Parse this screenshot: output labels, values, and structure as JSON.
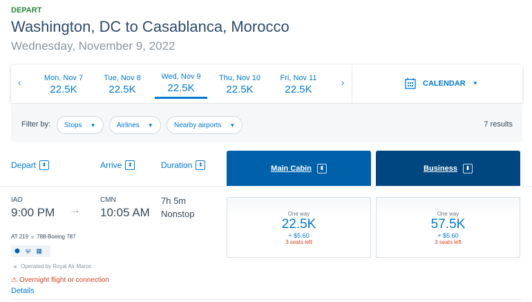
{
  "header": {
    "label": "DEPART",
    "title": "Washington, DC to Casablanca, Morocco",
    "date": "Wednesday, November 9, 2022"
  },
  "date_strip": {
    "days": [
      {
        "day": "Mon, Nov 7",
        "price": "22.5K",
        "selected": false
      },
      {
        "day": "Tue, Nov 8",
        "price": "22.5K",
        "selected": false
      },
      {
        "day": "Wed, Nov 9",
        "price": "22.5K",
        "selected": true
      },
      {
        "day": "Thu, Nov 10",
        "price": "22.5K",
        "selected": false
      },
      {
        "day": "Fri, Nov 11",
        "price": "22.5K",
        "selected": false
      }
    ],
    "prev": "‹",
    "next": "›",
    "calendar_label": "CALENDAR"
  },
  "filters": {
    "label": "Filter by:",
    "pills": [
      "Stops",
      "Airlines",
      "Nearby airports"
    ],
    "results": "7 results"
  },
  "columns": {
    "depart": "Depart",
    "arrive": "Arrive",
    "duration": "Duration",
    "main_cabin": "Main Cabin",
    "business": "Business"
  },
  "colors": {
    "main_cabin": "#0061ab",
    "business": "#00467f",
    "accent": "#0078d2",
    "warning": "#d14424",
    "depart_label": "#2e8540"
  },
  "flight": {
    "origin": "IAD",
    "depart_time": "9:00 PM",
    "dest": "CMN",
    "arrive_time": "10:05 AM",
    "duration": "7h 5m",
    "stops": "Nonstop",
    "flight_no": "AT 219",
    "aircraft": "788-Boeing 787",
    "amenities": [
      "power-icon",
      "usb-icon",
      "wifi-entertainment-icon"
    ],
    "operated_by": "Operated by Royal Air Maroc",
    "warning": "Overnight flight or connection",
    "details": "Details",
    "fares": [
      {
        "label": "One way",
        "points": "22.5K",
        "fee": "+ $5.60",
        "seats": "3 seats left"
      },
      {
        "label": "One way",
        "points": "57.5K",
        "fee": "+ $5.60",
        "seats": "3 seats left"
      }
    ]
  }
}
